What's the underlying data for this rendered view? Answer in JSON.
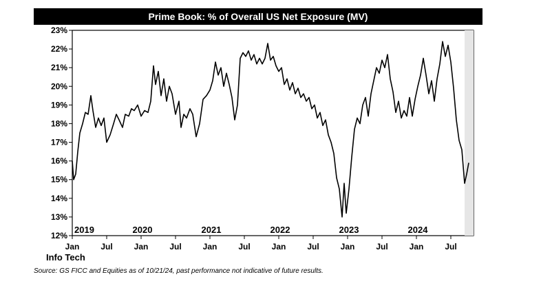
{
  "chart_data": {
    "type": "line",
    "title": "Prime Book: % of Overall US Net Exposure (MV)",
    "series_name": "Info Tech",
    "source": "Source:  GS FICC and Equities as of 10/21/24, past performance not indicative of future results.",
    "ylim": [
      12,
      23
    ],
    "y_ticks": [
      "12%",
      "13%",
      "14%",
      "15%",
      "16%",
      "17%",
      "18%",
      "19%",
      "20%",
      "21%",
      "22%",
      "23%"
    ],
    "y_tick_values": [
      12,
      13,
      14,
      15,
      16,
      17,
      18,
      19,
      20,
      21,
      22,
      23
    ],
    "year_labels": [
      "2019",
      "2020",
      "2021",
      "2022",
      "2023",
      "2024"
    ],
    "year_values": [
      2019,
      2020,
      2021,
      2022,
      2023,
      2024
    ],
    "month_ticks": [
      "Jan",
      "Jul",
      "Jan",
      "Jul",
      "Jan",
      "Jul",
      "Jan",
      "Jul",
      "Jan",
      "Jul",
      "Jan",
      "Jul"
    ],
    "month_tick_values": [
      2019.0,
      2019.5,
      2020.0,
      2020.5,
      2021.0,
      2021.5,
      2022.0,
      2022.5,
      2023.0,
      2023.5,
      2024.0,
      2024.5
    ],
    "xlim": [
      2019.0,
      2024.83
    ],
    "shaded_region": [
      2024.7,
      2024.83
    ],
    "grid": false,
    "points": [
      [
        2019.0,
        16.0
      ],
      [
        2019.02,
        15.0
      ],
      [
        2019.05,
        15.3
      ],
      [
        2019.08,
        16.5
      ],
      [
        2019.11,
        17.5
      ],
      [
        2019.15,
        18.0
      ],
      [
        2019.19,
        18.6
      ],
      [
        2019.23,
        18.5
      ],
      [
        2019.27,
        19.5
      ],
      [
        2019.3,
        18.7
      ],
      [
        2019.34,
        17.8
      ],
      [
        2019.38,
        18.3
      ],
      [
        2019.42,
        17.9
      ],
      [
        2019.46,
        18.3
      ],
      [
        2019.5,
        17.0
      ],
      [
        2019.55,
        17.4
      ],
      [
        2019.6,
        18.0
      ],
      [
        2019.64,
        18.5
      ],
      [
        2019.68,
        18.2
      ],
      [
        2019.73,
        17.8
      ],
      [
        2019.77,
        18.5
      ],
      [
        2019.82,
        18.4
      ],
      [
        2019.86,
        18.8
      ],
      [
        2019.9,
        18.7
      ],
      [
        2019.95,
        19.0
      ],
      [
        2020.0,
        18.4
      ],
      [
        2020.05,
        18.7
      ],
      [
        2020.1,
        18.6
      ],
      [
        2020.14,
        19.2
      ],
      [
        2020.18,
        21.1
      ],
      [
        2020.21,
        20.1
      ],
      [
        2020.25,
        20.8
      ],
      [
        2020.29,
        19.5
      ],
      [
        2020.33,
        20.4
      ],
      [
        2020.37,
        19.2
      ],
      [
        2020.41,
        20.0
      ],
      [
        2020.45,
        19.6
      ],
      [
        2020.5,
        18.5
      ],
      [
        2020.55,
        19.2
      ],
      [
        2020.58,
        17.8
      ],
      [
        2020.62,
        18.5
      ],
      [
        2020.66,
        18.3
      ],
      [
        2020.71,
        18.8
      ],
      [
        2020.75,
        18.5
      ],
      [
        2020.8,
        17.3
      ],
      [
        2020.85,
        18.0
      ],
      [
        2020.9,
        19.3
      ],
      [
        2020.95,
        19.5
      ],
      [
        2021.0,
        19.8
      ],
      [
        2021.04,
        20.3
      ],
      [
        2021.08,
        21.3
      ],
      [
        2021.12,
        20.6
      ],
      [
        2021.16,
        21.0
      ],
      [
        2021.2,
        20.0
      ],
      [
        2021.24,
        20.7
      ],
      [
        2021.28,
        20.1
      ],
      [
        2021.32,
        19.4
      ],
      [
        2021.36,
        18.2
      ],
      [
        2021.4,
        19.0
      ],
      [
        2021.44,
        21.5
      ],
      [
        2021.48,
        21.8
      ],
      [
        2021.52,
        21.6
      ],
      [
        2021.56,
        21.9
      ],
      [
        2021.6,
        21.4
      ],
      [
        2021.64,
        21.7
      ],
      [
        2021.68,
        21.2
      ],
      [
        2021.72,
        21.5
      ],
      [
        2021.76,
        21.2
      ],
      [
        2021.8,
        21.5
      ],
      [
        2021.84,
        22.3
      ],
      [
        2021.88,
        21.4
      ],
      [
        2021.92,
        21.6
      ],
      [
        2021.96,
        21.1
      ],
      [
        2022.0,
        20.8
      ],
      [
        2022.04,
        21.0
      ],
      [
        2022.08,
        20.1
      ],
      [
        2022.12,
        20.4
      ],
      [
        2022.16,
        19.8
      ],
      [
        2022.2,
        20.2
      ],
      [
        2022.24,
        19.6
      ],
      [
        2022.28,
        19.9
      ],
      [
        2022.32,
        19.4
      ],
      [
        2022.36,
        19.6
      ],
      [
        2022.4,
        19.2
      ],
      [
        2022.44,
        19.4
      ],
      [
        2022.48,
        18.8
      ],
      [
        2022.52,
        19.0
      ],
      [
        2022.56,
        18.3
      ],
      [
        2022.6,
        18.6
      ],
      [
        2022.64,
        17.9
      ],
      [
        2022.68,
        18.2
      ],
      [
        2022.72,
        17.4
      ],
      [
        2022.76,
        17.0
      ],
      [
        2022.8,
        16.4
      ],
      [
        2022.84,
        15.1
      ],
      [
        2022.88,
        14.5
      ],
      [
        2022.92,
        13.0
      ],
      [
        2022.95,
        14.8
      ],
      [
        2022.98,
        13.2
      ],
      [
        2023.02,
        14.5
      ],
      [
        2023.06,
        16.2
      ],
      [
        2023.1,
        17.7
      ],
      [
        2023.14,
        18.3
      ],
      [
        2023.18,
        18.0
      ],
      [
        2023.22,
        19.0
      ],
      [
        2023.26,
        19.4
      ],
      [
        2023.3,
        18.4
      ],
      [
        2023.34,
        19.6
      ],
      [
        2023.38,
        20.3
      ],
      [
        2023.42,
        21.0
      ],
      [
        2023.46,
        20.7
      ],
      [
        2023.5,
        21.4
      ],
      [
        2023.54,
        21.0
      ],
      [
        2023.58,
        21.7
      ],
      [
        2023.62,
        20.4
      ],
      [
        2023.66,
        19.7
      ],
      [
        2023.7,
        18.6
      ],
      [
        2023.74,
        19.2
      ],
      [
        2023.78,
        18.3
      ],
      [
        2023.82,
        18.7
      ],
      [
        2023.86,
        18.4
      ],
      [
        2023.9,
        19.4
      ],
      [
        2023.94,
        18.4
      ],
      [
        2023.98,
        19.3
      ],
      [
        2024.02,
        20.0
      ],
      [
        2024.06,
        20.6
      ],
      [
        2024.1,
        21.5
      ],
      [
        2024.14,
        20.6
      ],
      [
        2024.18,
        19.6
      ],
      [
        2024.22,
        20.3
      ],
      [
        2024.26,
        19.2
      ],
      [
        2024.3,
        20.4
      ],
      [
        2024.34,
        21.2
      ],
      [
        2024.38,
        22.4
      ],
      [
        2024.42,
        21.6
      ],
      [
        2024.46,
        22.2
      ],
      [
        2024.5,
        21.3
      ],
      [
        2024.54,
        19.9
      ],
      [
        2024.58,
        18.2
      ],
      [
        2024.62,
        17.1
      ],
      [
        2024.66,
        16.6
      ],
      [
        2024.7,
        14.8
      ],
      [
        2024.73,
        15.3
      ],
      [
        2024.76,
        15.9
      ]
    ]
  }
}
